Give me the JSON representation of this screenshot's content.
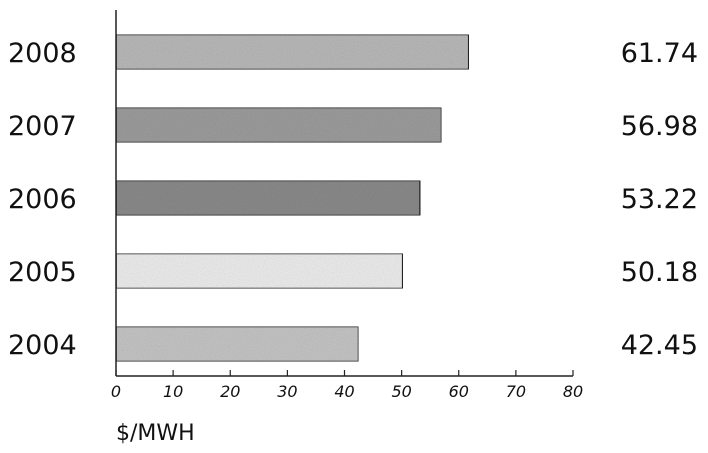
{
  "chart_data": {
    "type": "bar",
    "orientation": "horizontal",
    "categories": [
      "2008",
      "2007",
      "2006",
      "2005",
      "2004"
    ],
    "values": [
      61.74,
      56.98,
      53.22,
      50.18,
      42.45
    ],
    "value_labels": [
      "61.74",
      "56.98",
      "53.22",
      "50.18",
      "42.45"
    ],
    "xlabel": "$/MWH",
    "xlim": [
      0,
      80
    ],
    "xticks": [
      "0",
      "10",
      "20",
      "30",
      "40",
      "50",
      "60",
      "70",
      "80"
    ],
    "grid": false,
    "colors": [
      "#b8b8b8",
      "#9c9c9c",
      "#8a8a8a",
      "#ececec",
      "#c4c4c4"
    ]
  }
}
